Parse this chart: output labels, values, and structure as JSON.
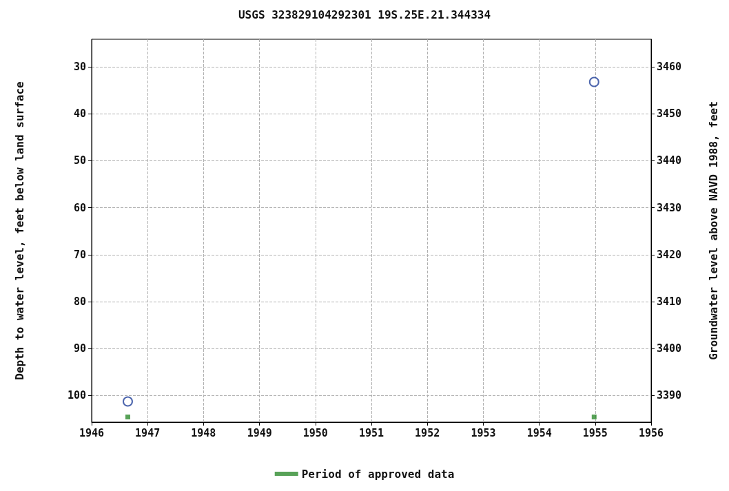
{
  "chart_data": {
    "type": "scatter",
    "title": "USGS 323829104292301 19S.25E.21.344334",
    "ylabel": "Depth to water level, feet below land surface",
    "y2label": "Groundwater level above NAVD 1988, feet",
    "xlim": [
      "1946",
      "1956"
    ],
    "xticks": [
      "1946",
      "1947",
      "1948",
      "1949",
      "1950",
      "1951",
      "1952",
      "1953",
      "1954",
      "1955",
      "1956"
    ],
    "ylim": [
      105.7,
      24.1
    ],
    "yticks": [
      30,
      40,
      50,
      60,
      70,
      80,
      90,
      100
    ],
    "y2lim": [
      3384.3,
      3465.9
    ],
    "y2ticks": [
      3390,
      3400,
      3410,
      3420,
      3430,
      3440,
      3450,
      3460
    ],
    "series": [
      {
        "type": "scatter",
        "color": "#1f3f99",
        "marker": "circle",
        "x": [
          "1946-08-25",
          "1954-12-25"
        ],
        "values": [
          101.3,
          33.2
        ]
      },
      {
        "type": "scatter",
        "name": "Period of approved data",
        "color": "#2e8b2e",
        "marker": "square",
        "x": [
          "1946-08-25",
          "1954-12-25"
        ],
        "values": [
          104.6,
          104.6
        ]
      }
    ],
    "grid": true,
    "legend": "bottom"
  }
}
